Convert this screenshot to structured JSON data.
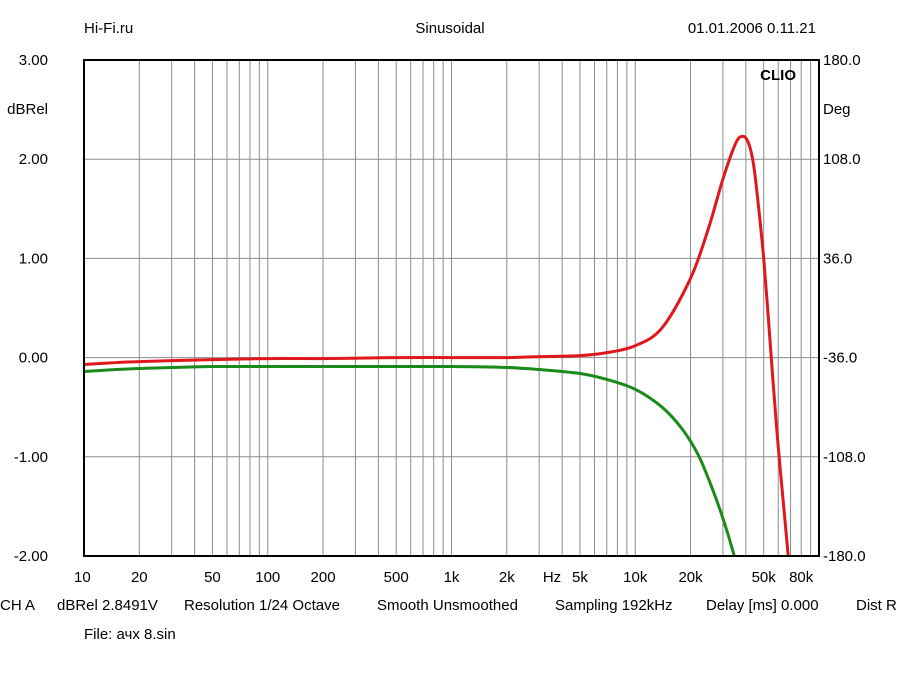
{
  "header": {
    "left": "Hi-Fi.ru",
    "center": "Sinusoidal",
    "right": "01.01.2006 0.11.21"
  },
  "brand": {
    "logo_text": "CLIO"
  },
  "info_bar": {
    "items": [
      "CH A",
      "dBRel 2.8491V",
      "Resolution 1/24 Octave",
      "Smooth Unsmoothed",
      "Sampling 192kHz",
      "Delay [ms] 0.000",
      "Dist R"
    ]
  },
  "file": {
    "label": "File: ачх 8.sin"
  },
  "chart_data": {
    "type": "line",
    "title": "",
    "xscale": "log",
    "xlim": [
      10,
      100000
    ],
    "x_unit_label": "Hz",
    "x_tick_labels": [
      {
        "value": 10,
        "label": "10"
      },
      {
        "value": 20,
        "label": "20"
      },
      {
        "value": 50,
        "label": "50"
      },
      {
        "value": 100,
        "label": "100"
      },
      {
        "value": 200,
        "label": "200"
      },
      {
        "value": 500,
        "label": "500"
      },
      {
        "value": 1000,
        "label": "1k"
      },
      {
        "value": 2000,
        "label": "2k"
      },
      {
        "value": 5000,
        "label": "5k"
      },
      {
        "value": 10000,
        "label": "10k"
      },
      {
        "value": 20000,
        "label": "20k"
      },
      {
        "value": 50000,
        "label": "50k"
      },
      {
        "value": 80000,
        "label": "80k"
      }
    ],
    "ylabel_left": "dBRel",
    "ylim_left": [
      -2,
      3
    ],
    "y_ticks_left": [
      "3.00",
      "2.00",
      "1.00",
      "0.00",
      "-1.00",
      "-2.00"
    ],
    "ylabel_right": "Deg",
    "ylim_right": [
      -180,
      180
    ],
    "y_ticks_right": [
      "180.0",
      "108.0",
      "36.0",
      "-36.0",
      "-108.0",
      "-180.0"
    ],
    "grid": true,
    "series": [
      {
        "color": "#e0181c",
        "axis": "left",
        "x": [
          10,
          15,
          20,
          30,
          50,
          100,
          200,
          500,
          1000,
          2000,
          3000,
          5000,
          7000,
          10000,
          14000,
          20000,
          25000,
          30000,
          35000,
          38000,
          41000,
          44000,
          47000,
          50000,
          53000,
          56000,
          60000,
          65000,
          68000
        ],
        "y": [
          -0.07,
          -0.05,
          -0.04,
          -0.03,
          -0.02,
          -0.01,
          -0.01,
          0.0,
          0.0,
          0.0,
          0.01,
          0.02,
          0.05,
          0.12,
          0.3,
          0.8,
          1.3,
          1.8,
          2.15,
          2.23,
          2.18,
          1.95,
          1.5,
          1.0,
          0.4,
          -0.2,
          -0.9,
          -1.6,
          -2.0
        ]
      },
      {
        "color": "#1a8a1a",
        "axis": "left",
        "x": [
          10,
          15,
          20,
          30,
          50,
          100,
          200,
          500,
          1000,
          2000,
          3000,
          5000,
          7000,
          10000,
          14000,
          18000,
          22000,
          26000,
          30000,
          34000,
          38000
        ],
        "y": [
          -0.14,
          -0.12,
          -0.11,
          -0.1,
          -0.09,
          -0.09,
          -0.09,
          -0.09,
          -0.09,
          -0.1,
          -0.12,
          -0.16,
          -0.22,
          -0.32,
          -0.5,
          -0.72,
          -0.98,
          -1.3,
          -1.62,
          -1.95,
          -2.3
        ]
      }
    ]
  }
}
